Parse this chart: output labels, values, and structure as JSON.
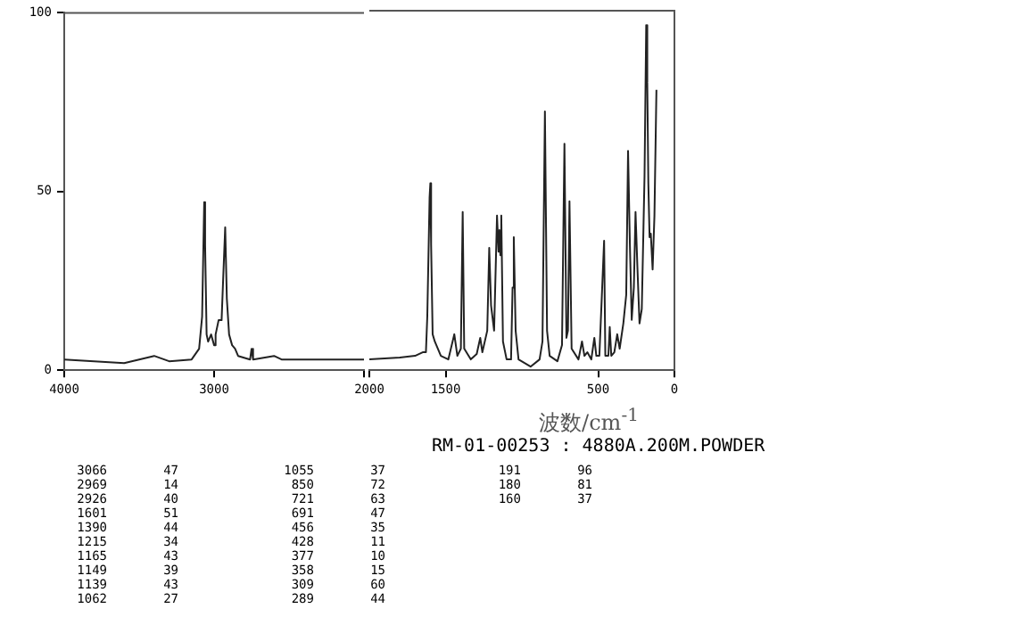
{
  "chart_data": [
    {
      "type": "line",
      "x": [
        4000,
        3600,
        3400,
        3300,
        3150,
        3100,
        3080,
        3066,
        3060,
        3050,
        3040,
        3020,
        3000,
        2990,
        2970,
        2950,
        2940,
        2926,
        2915,
        2900,
        2880,
        2860,
        2840,
        2760,
        2750,
        2740,
        2600,
        2550,
        2000
      ],
      "series": [
        {
          "color": "#222222",
          "values": [
            3,
            2,
            4,
            2.5,
            3,
            6,
            15,
            47,
            35,
            10,
            8,
            10,
            7,
            10,
            14,
            14,
            25,
            40,
            20,
            10,
            7,
            6,
            4,
            3,
            6,
            3,
            4,
            3,
            3
          ]
        }
      ],
      "xlim": [
        4000,
        2000
      ],
      "xticks": [
        4000,
        3000,
        {
          "value": 2000,
          "label": null
        }
      ],
      "ylim": [
        0,
        100
      ],
      "yticks": [
        0,
        50,
        100
      ],
      "grid": false,
      "legend": false,
      "marker": "none",
      "line_style": "solid"
    },
    {
      "type": "line",
      "xlabel": "波数/cm$^{-1}$",
      "x": [
        2000,
        1800,
        1700,
        1650,
        1629,
        1620,
        1605,
        1600,
        1595,
        1585,
        1571,
        1531,
        1482,
        1443,
        1423,
        1400,
        1388,
        1378,
        1335,
        1296,
        1273,
        1259,
        1227,
        1214,
        1202,
        1182,
        1163,
        1153,
        1147,
        1141,
        1135,
        1124,
        1100,
        1071,
        1061,
        1053,
        1041,
        1022,
        943,
        884,
        865,
        849,
        835,
        818,
        767,
        737,
        721,
        708,
        698,
        688,
        674,
        629,
        606,
        590,
        571,
        545,
        525,
        512,
        492,
        461,
        453,
        433,
        424,
        414,
        394,
        375,
        359,
        335,
        316,
        304,
        292,
        280,
        266,
        255,
        243,
        229,
        214,
        196,
        185,
        178,
        171,
        163,
        155,
        143,
        131,
        118
      ],
      "series": [
        {
          "color": "#222222",
          "values": [
            3,
            3.5,
            4,
            5,
            5,
            15,
            48,
            52,
            35,
            10,
            8,
            4,
            3,
            10,
            4,
            6,
            44,
            6,
            3,
            4.5,
            9,
            5,
            11,
            34,
            18,
            11,
            43,
            33,
            39,
            32,
            43,
            8,
            3,
            3,
            23,
            37,
            11,
            3,
            1,
            3,
            8,
            72,
            11,
            4,
            2.5,
            7,
            63,
            9,
            11,
            47,
            6,
            3,
            8,
            4,
            5,
            3,
            9,
            4,
            4,
            36,
            4,
            4,
            12,
            4,
            5,
            10,
            6,
            13,
            21,
            61,
            35,
            14,
            23,
            44,
            29,
            13,
            17,
            54,
            96,
            80,
            52,
            37,
            38,
            28,
            43,
            78
          ]
        }
      ],
      "xlim": [
        2000,
        0
      ],
      "xticks": [
        2000,
        1500,
        500,
        0
      ],
      "ylim": [
        0,
        100
      ],
      "yticks": [
        0,
        50,
        100
      ],
      "tick_labels": "x",
      "grid": false,
      "legend": false,
      "marker": "none",
      "line_style": "solid",
      "annotations": [
        "RM-01-00253 : 4880A.200M.POWDER",
        "3066 47",
        "2969 14",
        "2926 40",
        "1601 51",
        "1390 44",
        "1215 34",
        "1165 43",
        "1149 39",
        "1139 43",
        "1062 27",
        "1055 37",
        "850 72",
        "721 63",
        "691 47",
        "456 35",
        "428 11",
        "377 10",
        "358 15",
        "309 60",
        "289 44",
        "191 96",
        "180 81",
        "160 37"
      ]
    }
  ]
}
